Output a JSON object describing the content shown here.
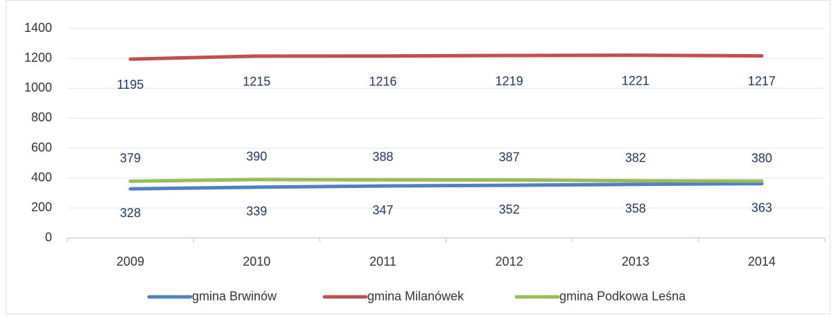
{
  "chart_data": {
    "type": "line",
    "categories": [
      "2009",
      "2010",
      "2011",
      "2012",
      "2013",
      "2014"
    ],
    "series": [
      {
        "name": "gmina Brwinów",
        "color": "#4f81bd",
        "values": [
          328,
          339,
          347,
          352,
          358,
          363
        ]
      },
      {
        "name": "gmina Milanówek",
        "color": "#c0504d",
        "values": [
          1195,
          1215,
          1216,
          1219,
          1221,
          1217
        ]
      },
      {
        "name": "gmina Podkowa Leśna",
        "color": "#9bbb59",
        "values": [
          379,
          390,
          388,
          387,
          382,
          380
        ]
      }
    ],
    "ylim": [
      0,
      1400
    ],
    "yticks": [
      0,
      200,
      400,
      600,
      800,
      1000,
      1200,
      1400
    ],
    "grid": true,
    "legend": "bottom"
  }
}
